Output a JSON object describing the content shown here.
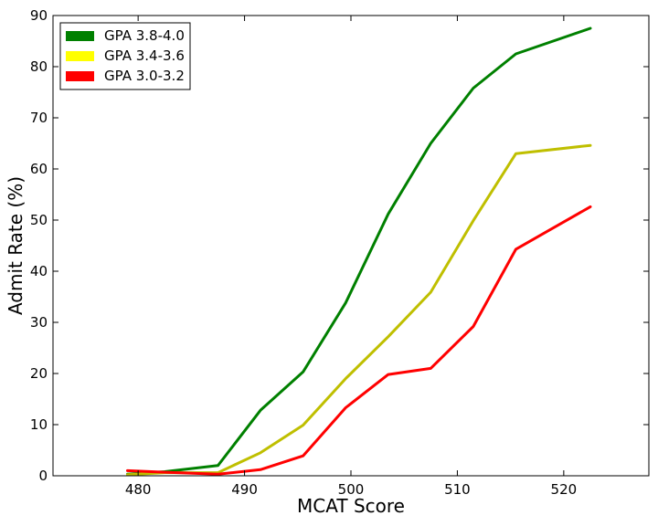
{
  "chart_data": {
    "type": "line",
    "xlabel": "MCAT Score",
    "ylabel": "Admit Rate (%)",
    "xlim": [
      472,
      528
    ],
    "ylim": [
      0,
      90
    ],
    "x_ticks": [
      480,
      490,
      500,
      510,
      520
    ],
    "y_ticks": [
      0,
      10,
      20,
      30,
      40,
      50,
      60,
      70,
      80,
      90
    ],
    "grid": false,
    "legend_position": "top-left",
    "series": [
      {
        "name": "GPA 3.8-4.0",
        "color": "#008000",
        "x": [
          479,
          482.5,
          487.5,
          491.5,
          495.5,
          499.5,
          503.5,
          507.5,
          511.5,
          515.5,
          522.5
        ],
        "y": [
          0.3,
          0.8,
          2.0,
          12.8,
          20.3,
          33.8,
          51.2,
          65.0,
          75.8,
          82.5,
          87.5
        ]
      },
      {
        "name": "GPA 3.4-3.6",
        "color": "#bfbf00",
        "x": [
          479,
          482.5,
          487.5,
          491.5,
          495.5,
          499.5,
          503.5,
          507.5,
          511.5,
          515.5,
          522.5
        ],
        "y": [
          0.2,
          0.6,
          0.6,
          4.5,
          9.9,
          19.0,
          27.2,
          35.9,
          49.9,
          63.0,
          64.6
        ]
      },
      {
        "name": "GPA 3.0-3.2",
        "color": "#ff0000",
        "x": [
          479,
          482.5,
          487.5,
          491.5,
          495.5,
          499.5,
          503.5,
          507.5,
          511.5,
          515.5,
          522.5
        ],
        "y": [
          1.0,
          0.7,
          0.3,
          1.2,
          3.9,
          13.3,
          19.8,
          21.0,
          29.2,
          44.3,
          52.6
        ]
      }
    ],
    "legend_swatch_colors": [
      "#008000",
      "#ffff00",
      "#ff0000"
    ]
  }
}
